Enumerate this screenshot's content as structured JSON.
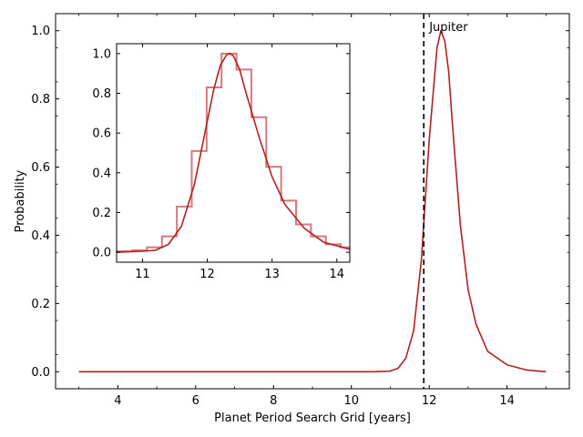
{
  "chart_data": [
    {
      "type": "line",
      "role": "main",
      "xlabel": "Planet Period Search Grid [years]",
      "ylabel": "Probability",
      "xlim": [
        2.4,
        15.6
      ],
      "ylim": [
        -0.05,
        1.05
      ],
      "xticks": [
        4,
        6,
        8,
        10,
        12,
        14
      ],
      "yticks": [
        0.0,
        0.2,
        0.4,
        0.6,
        0.8,
        1.0
      ],
      "xtick_labels": [
        "4",
        "6",
        "8",
        "10",
        "12",
        "14"
      ],
      "ytick_labels": [
        "0.0",
        "0.2",
        "0.4",
        "0.6",
        "0.8",
        "1.0"
      ],
      "grid": false,
      "line_color": "#b22222",
      "series": [
        {
          "x": [
            3.0,
            10.6,
            11.0,
            11.2,
            11.4,
            11.6,
            11.8,
            12.0,
            12.2,
            12.3,
            12.4,
            12.5,
            12.6,
            12.8,
            13.0,
            13.2,
            13.5,
            14.0,
            14.5,
            15.0
          ],
          "values": [
            0.0,
            0.0,
            0.002,
            0.01,
            0.04,
            0.12,
            0.33,
            0.68,
            0.95,
            1.0,
            0.97,
            0.88,
            0.72,
            0.43,
            0.24,
            0.14,
            0.06,
            0.02,
            0.005,
            0.0
          ]
        }
      ],
      "vline": {
        "x": 11.86,
        "style": "dashed",
        "color": "#000000",
        "label": "Jupiter"
      }
    },
    {
      "type": "line",
      "role": "inset",
      "xlim": [
        10.6,
        14.2
      ],
      "ylim": [
        -0.05,
        1.05
      ],
      "xticks": [
        11,
        12,
        13,
        14
      ],
      "yticks": [
        0.0,
        0.2,
        0.4,
        0.6,
        0.8,
        1.0
      ],
      "xtick_labels": [
        "11",
        "12",
        "13",
        "14"
      ],
      "ytick_labels": [
        "0.0",
        "0.2",
        "0.4",
        "0.6",
        "0.8",
        "1.0"
      ],
      "grid": false,
      "histogram": {
        "color": "#d9787c",
        "edges": [
          10.6,
          10.84,
          11.07,
          11.3,
          11.53,
          11.76,
          11.99,
          12.22,
          12.45,
          12.68,
          12.91,
          13.14,
          13.37,
          13.6,
          13.83,
          14.06,
          14.2
        ],
        "values": [
          0.005,
          0.01,
          0.025,
          0.08,
          0.23,
          0.51,
          0.83,
          1.0,
          0.92,
          0.68,
          0.43,
          0.26,
          0.14,
          0.08,
          0.04,
          0.025
        ]
      },
      "series": [
        {
          "x": [
            10.6,
            11.0,
            11.2,
            11.4,
            11.6,
            11.8,
            12.0,
            12.1,
            12.2,
            12.3,
            12.35,
            12.4,
            12.5,
            12.6,
            12.8,
            13.0,
            13.2,
            13.5,
            13.8,
            14.2
          ],
          "values": [
            0.0,
            0.005,
            0.01,
            0.04,
            0.13,
            0.34,
            0.66,
            0.82,
            0.94,
            0.995,
            1.0,
            0.99,
            0.92,
            0.8,
            0.58,
            0.38,
            0.24,
            0.12,
            0.05,
            0.015
          ]
        }
      ],
      "line_color": "#b22222"
    }
  ]
}
